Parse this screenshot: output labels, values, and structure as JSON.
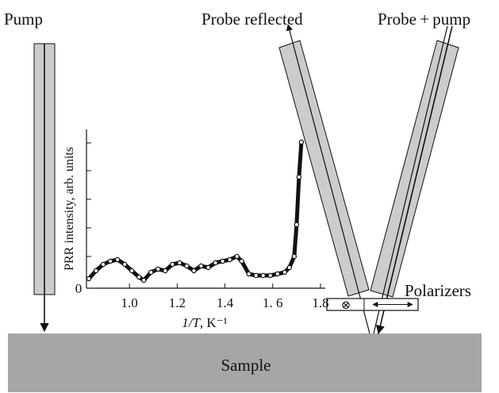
{
  "labels": {
    "pump": "Pump",
    "probe_reflected": "Probe reflected",
    "probe_pump": "Probe + pump",
    "polarizers": "Polarizers",
    "sample": "Sample",
    "polarizer_symbol": "⊗"
  },
  "colors": {
    "beam_fill": "#cccccc",
    "sample_fill": "#a6a6a6",
    "line": "#111111"
  },
  "chart_data": {
    "type": "scatter",
    "xlabel_italic": "1/T",
    "xlabel_unit": ", K⁻¹",
    "ylabel": "PRR intensity, arb. units",
    "xlim": [
      0.82,
      1.82
    ],
    "ylim": [
      0,
      1.0
    ],
    "x_ticks": [
      1.0,
      1.2,
      1.4,
      1.6,
      1.8
    ],
    "x_tick_labels": [
      "1.0",
      "1.2",
      "1.4",
      "1. 6",
      "1.8"
    ],
    "y_tick_labels": [
      "0"
    ],
    "series": [
      {
        "x": [
          0.83,
          0.86,
          0.89,
          0.92,
          0.95,
          0.98,
          1.01,
          1.04,
          1.06,
          1.09,
          1.12,
          1.15,
          1.18,
          1.21,
          1.24,
          1.27,
          1.3,
          1.33,
          1.36,
          1.39,
          1.42,
          1.45,
          1.47,
          1.5,
          1.53,
          1.56,
          1.59,
          1.62,
          1.65,
          1.67,
          1.69,
          1.7,
          1.71,
          1.72
        ],
        "y": [
          0.06,
          0.11,
          0.15,
          0.17,
          0.18,
          0.15,
          0.11,
          0.07,
          0.05,
          0.1,
          0.12,
          0.11,
          0.15,
          0.16,
          0.14,
          0.11,
          0.14,
          0.13,
          0.16,
          0.17,
          0.18,
          0.2,
          0.17,
          0.09,
          0.08,
          0.08,
          0.08,
          0.09,
          0.1,
          0.13,
          0.2,
          0.4,
          0.7,
          0.92
        ]
      }
    ]
  }
}
